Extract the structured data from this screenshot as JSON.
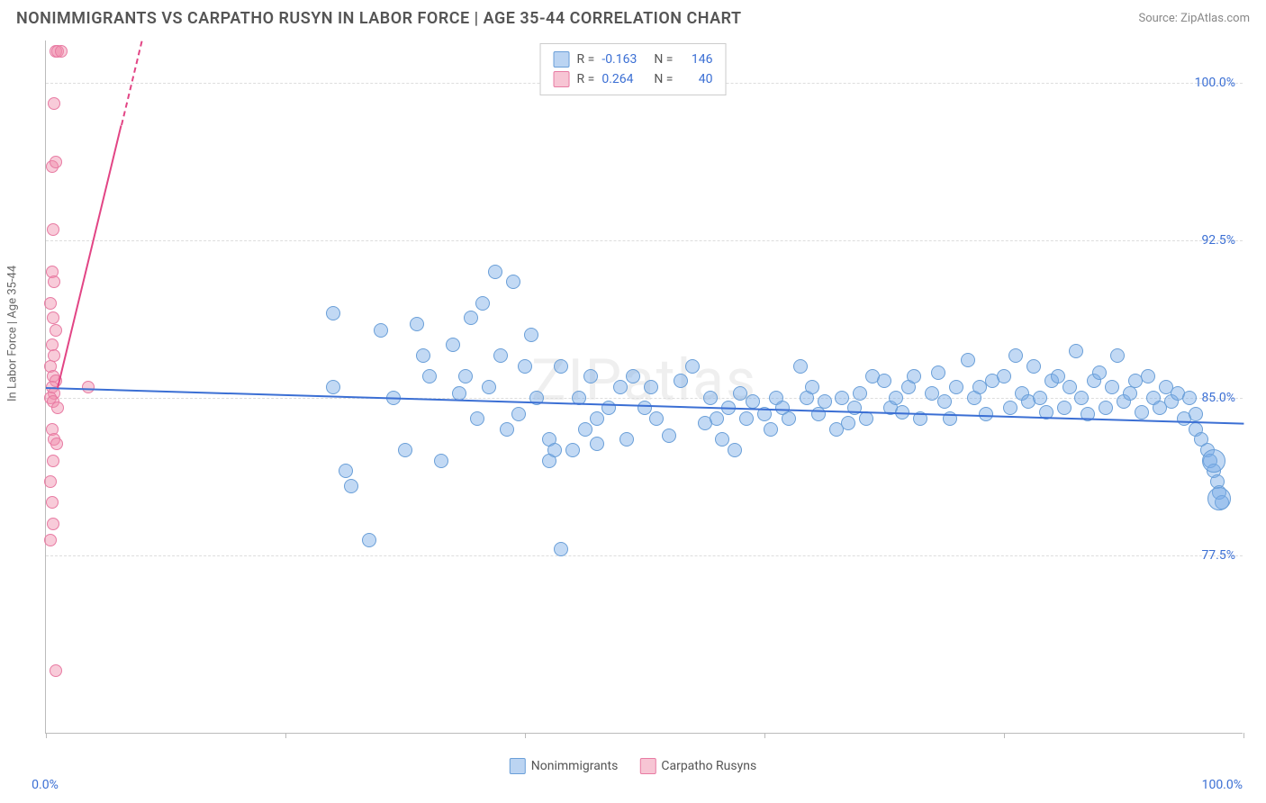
{
  "title": "NONIMMIGRANTS VS CARPATHO RUSYN IN LABOR FORCE | AGE 35-44 CORRELATION CHART",
  "source": "Source: ZipAtlas.com",
  "watermark": "ZIPatlas",
  "y_axis_label": "In Labor Force | Age 35-44",
  "chart": {
    "type": "scatter",
    "background_color": "#ffffff",
    "grid_color": "#dddddd",
    "border_color": "#bbbbbb",
    "xlim": [
      0,
      100
    ],
    "ylim": [
      69,
      102
    ],
    "x_ticks": [
      0,
      20,
      40,
      60,
      80,
      100
    ],
    "x_tick_labels": [
      "0.0%",
      "",
      "",
      "",
      "",
      "100.0%"
    ],
    "y_grid": [
      77.5,
      85.0,
      92.5,
      100.0
    ],
    "y_tick_labels": [
      "77.5%",
      "85.0%",
      "92.5%",
      "100.0%"
    ],
    "tick_label_color": "#3b6fd4",
    "axis_label_color": "#666666",
    "title_color": "#555555",
    "title_fontsize": 18
  },
  "series": {
    "nonimmigrants": {
      "label": "Nonimmigrants",
      "color_fill": "rgba(120,170,230,0.45)",
      "color_stroke": "#6a9fd8",
      "marker_size": 16,
      "trend": {
        "x1": 0,
        "y1": 85.5,
        "x2": 100,
        "y2": 83.8,
        "color": "#3b6fd4",
        "width": 2
      },
      "R": "-0.163",
      "N": "146",
      "points": [
        [
          24,
          89
        ],
        [
          24,
          85.5
        ],
        [
          25,
          81.5
        ],
        [
          25.5,
          80.8
        ],
        [
          27,
          78.2
        ],
        [
          28,
          88.2
        ],
        [
          29,
          85
        ],
        [
          30,
          82.5
        ],
        [
          31,
          88.5
        ],
        [
          31.5,
          87
        ],
        [
          32,
          86
        ],
        [
          33,
          82
        ],
        [
          34,
          87.5
        ],
        [
          34.5,
          85.2
        ],
        [
          35,
          86
        ],
        [
          35.5,
          88.8
        ],
        [
          36,
          84
        ],
        [
          36.5,
          89.5
        ],
        [
          37,
          85.5
        ],
        [
          37.5,
          91
        ],
        [
          38,
          87
        ],
        [
          38.5,
          83.5
        ],
        [
          39,
          90.5
        ],
        [
          39.5,
          84.2
        ],
        [
          40,
          86.5
        ],
        [
          40.5,
          88
        ],
        [
          41,
          85
        ],
        [
          42,
          83
        ],
        [
          42,
          82
        ],
        [
          42.5,
          82.5
        ],
        [
          43,
          77.8
        ],
        [
          43,
          86.5
        ],
        [
          44,
          82.5
        ],
        [
          44.5,
          85
        ],
        [
          45,
          83.5
        ],
        [
          45.5,
          86
        ],
        [
          46,
          82.8
        ],
        [
          46,
          84
        ],
        [
          47,
          84.5
        ],
        [
          48,
          85.5
        ],
        [
          48.5,
          83
        ],
        [
          49,
          86
        ],
        [
          50,
          84.5
        ],
        [
          50.5,
          85.5
        ],
        [
          51,
          84
        ],
        [
          52,
          83.2
        ],
        [
          53,
          85.8
        ],
        [
          54,
          86.5
        ],
        [
          55,
          83.8
        ],
        [
          55.5,
          85
        ],
        [
          56,
          84
        ],
        [
          56.5,
          83
        ],
        [
          57,
          84.5
        ],
        [
          57.5,
          82.5
        ],
        [
          58,
          85.2
        ],
        [
          58.5,
          84
        ],
        [
          59,
          84.8
        ],
        [
          60,
          84.2
        ],
        [
          60.5,
          83.5
        ],
        [
          61,
          85
        ],
        [
          61.5,
          84.5
        ],
        [
          62,
          84
        ],
        [
          63,
          86.5
        ],
        [
          63.5,
          85
        ],
        [
          64,
          85.5
        ],
        [
          64.5,
          84.2
        ],
        [
          65,
          84.8
        ],
        [
          66,
          83.5
        ],
        [
          66.5,
          85
        ],
        [
          67,
          83.8
        ],
        [
          67.5,
          84.5
        ],
        [
          68,
          85.2
        ],
        [
          68.5,
          84
        ],
        [
          69,
          86
        ],
        [
          70,
          85.8
        ],
        [
          70.5,
          84.5
        ],
        [
          71,
          85
        ],
        [
          71.5,
          84.3
        ],
        [
          72,
          85.5
        ],
        [
          72.5,
          86
        ],
        [
          73,
          84
        ],
        [
          74,
          85.2
        ],
        [
          74.5,
          86.2
        ],
        [
          75,
          84.8
        ],
        [
          75.5,
          84
        ],
        [
          76,
          85.5
        ],
        [
          77,
          86.8
        ],
        [
          77.5,
          85
        ],
        [
          78,
          85.5
        ],
        [
          78.5,
          84.2
        ],
        [
          79,
          85.8
        ],
        [
          80,
          86
        ],
        [
          80.5,
          84.5
        ],
        [
          81,
          87
        ],
        [
          81.5,
          85.2
        ],
        [
          82,
          84.8
        ],
        [
          82.5,
          86.5
        ],
        [
          83,
          85
        ],
        [
          83.5,
          84.3
        ],
        [
          84,
          85.8
        ],
        [
          84.5,
          86
        ],
        [
          85,
          84.5
        ],
        [
          85.5,
          85.5
        ],
        [
          86,
          87.2
        ],
        [
          86.5,
          85
        ],
        [
          87,
          84.2
        ],
        [
          87.5,
          85.8
        ],
        [
          88,
          86.2
        ],
        [
          88.5,
          84.5
        ],
        [
          89,
          85.5
        ],
        [
          89.5,
          87
        ],
        [
          90,
          84.8
        ],
        [
          90.5,
          85.2
        ],
        [
          91,
          85.8
        ],
        [
          91.5,
          84.3
        ],
        [
          92,
          86
        ],
        [
          92.5,
          85
        ],
        [
          93,
          84.5
        ],
        [
          93.5,
          85.5
        ],
        [
          94,
          84.8
        ],
        [
          94.5,
          85.2
        ],
        [
          95,
          84
        ],
        [
          95.5,
          85
        ],
        [
          96,
          83.5
        ],
        [
          96,
          84.2
        ],
        [
          96.5,
          83
        ],
        [
          97,
          82.5
        ],
        [
          97.2,
          82
        ],
        [
          97.5,
          81.5
        ],
        [
          97.8,
          81
        ],
        [
          98,
          80.5
        ],
        [
          98.2,
          80
        ]
      ],
      "big_points": [
        [
          97.5,
          82
        ],
        [
          98,
          80.2
        ]
      ]
    },
    "carpatho": {
      "label": "Carpatho Rusyns",
      "color_fill": "rgba(240,140,170,0.45)",
      "color_stroke": "#e87ba3",
      "marker_size": 14,
      "trend": {
        "x1": 1,
        "y1": 85.5,
        "x2": 8,
        "y2": 102,
        "color": "#e24585",
        "width": 2,
        "dashed_after": 98
      },
      "R": "0.264",
      "N": "40",
      "points": [
        [
          0.8,
          101.5
        ],
        [
          1.0,
          101.5
        ],
        [
          1.3,
          101.5
        ],
        [
          0.7,
          99
        ],
        [
          0.5,
          96
        ],
        [
          0.8,
          96.2
        ],
        [
          0.6,
          93
        ],
        [
          0.5,
          91
        ],
        [
          0.7,
          90.5
        ],
        [
          0.4,
          89.5
        ],
        [
          0.6,
          88.8
        ],
        [
          0.8,
          88.2
        ],
        [
          0.5,
          87.5
        ],
        [
          0.7,
          87
        ],
        [
          0.4,
          86.5
        ],
        [
          0.6,
          86
        ],
        [
          0.8,
          85.8
        ],
        [
          0.5,
          85.5
        ],
        [
          0.7,
          85.2
        ],
        [
          0.4,
          85
        ],
        [
          0.6,
          84.8
        ],
        [
          1.0,
          84.5
        ],
        [
          0.5,
          83.5
        ],
        [
          0.7,
          83
        ],
        [
          0.9,
          82.8
        ],
        [
          0.6,
          82
        ],
        [
          0.4,
          81
        ],
        [
          0.5,
          80
        ],
        [
          0.6,
          79
        ],
        [
          0.4,
          78.2
        ],
        [
          0.8,
          72
        ],
        [
          3.5,
          85.5
        ]
      ]
    }
  },
  "legend_top": {
    "border_color": "#cccccc",
    "bg_color": "#ffffff",
    "rows": [
      {
        "swatch_fill": "rgba(120,170,230,0.5)",
        "swatch_stroke": "#6a9fd8",
        "r_label": "R =",
        "r_val": "-0.163",
        "n_label": "N =",
        "n_val": "146"
      },
      {
        "swatch_fill": "rgba(240,140,170,0.5)",
        "swatch_stroke": "#e87ba3",
        "r_label": "R =",
        "r_val": "0.264",
        "n_label": "N =",
        "n_val": "40"
      }
    ]
  },
  "legend_bottom": [
    {
      "swatch_fill": "rgba(120,170,230,0.5)",
      "swatch_stroke": "#6a9fd8",
      "label": "Nonimmigrants"
    },
    {
      "swatch_fill": "rgba(240,140,170,0.5)",
      "swatch_stroke": "#e87ba3",
      "label": "Carpatho Rusyns"
    }
  ]
}
